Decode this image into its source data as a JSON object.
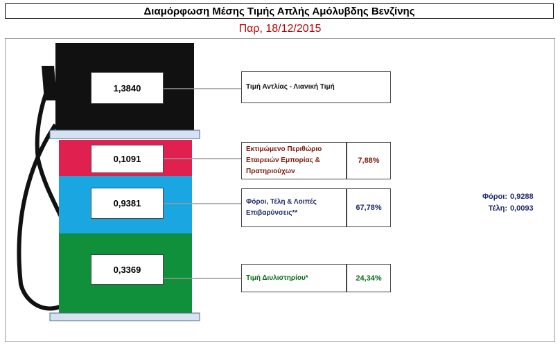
{
  "title": "Διαμόρφωση Μέσης Τιμής Απλής Αμόλυβδης Βενζίνης",
  "date": "Παρ, 18/12/2015",
  "colors": {
    "pump_top": "#111111",
    "margin": "#e0204f",
    "taxes": "#1aa6e0",
    "refinery": "#11903c",
    "date_text": "#c00000",
    "margin_text": "#7a1a0a",
    "taxes_text": "#1f2a6b",
    "refinery_text": "#0d6a1e"
  },
  "segments": {
    "pump_price": {
      "value": "1,3840",
      "label": "Τιμή Αντλίας - Λιανική Τιμή"
    },
    "margin": {
      "value": "0,1091",
      "label": "Εκτιμώμενο Περιθώριο Εταιρειών Εμπορίας & Πρατηριούχων",
      "percent": "7,88%"
    },
    "taxes": {
      "value": "0,9381",
      "label": "Φόροι, Τέλη & Λοιπές Επιβαρύνσεις**",
      "percent": "67,78%"
    },
    "refinery": {
      "value": "0,3369",
      "label": "Τιμή Διυλιστηρίου*",
      "percent": "24,34%"
    }
  },
  "taxes_breakdown": {
    "taxes_label": "Φόροι:",
    "taxes_value": "0,9288",
    "fees_label": "Τέλη:",
    "fees_value": "0,0093"
  }
}
